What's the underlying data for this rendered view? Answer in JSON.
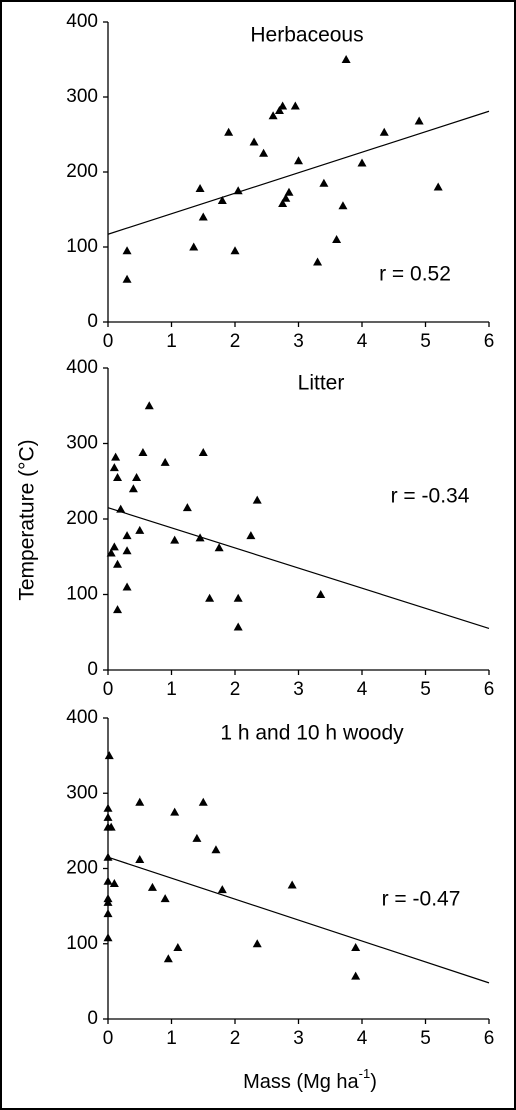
{
  "chart_data": [
    {
      "type": "scatter",
      "title": "Herbaceous",
      "annotation": "r = 0.52",
      "color": "#000000",
      "x": [
        0.3,
        0.3,
        1.35,
        1.45,
        1.5,
        1.8,
        1.9,
        2.0,
        2.05,
        2.3,
        2.45,
        2.6,
        2.7,
        2.75,
        2.75,
        2.8,
        2.85,
        2.95,
        3.0,
        3.3,
        3.4,
        3.6,
        3.7,
        3.75,
        4.0,
        4.35,
        4.9,
        5.2
      ],
      "y": [
        95,
        57,
        100,
        178,
        140,
        162,
        253,
        95,
        175,
        240,
        225,
        275,
        282,
        288,
        158,
        165,
        173,
        288,
        215,
        80,
        185,
        110,
        155,
        350,
        212,
        253,
        268,
        180
      ],
      "trend": {
        "x": [
          0,
          6
        ],
        "y": [
          117,
          281
        ]
      },
      "xlim": [
        0,
        6
      ],
      "ylim": [
        0,
        400
      ],
      "xticks": [
        0,
        1,
        2,
        3,
        4,
        5,
        6
      ],
      "yticks": [
        0,
        100,
        200,
        300,
        400
      ]
    },
    {
      "type": "scatter",
      "title": "Litter",
      "annotation": "r = -0.34",
      "color": "#000000",
      "y_label": "Temperature (°C)",
      "x": [
        0.05,
        0.1,
        0.1,
        0.12,
        0.15,
        0.15,
        0.15,
        0.2,
        0.3,
        0.3,
        0.3,
        0.4,
        0.45,
        0.5,
        0.55,
        0.65,
        0.9,
        1.05,
        1.25,
        1.45,
        1.5,
        1.6,
        1.75,
        2.05,
        2.05,
        2.25,
        2.35,
        3.35
      ],
      "y": [
        155,
        163,
        268,
        282,
        255,
        140,
        80,
        213,
        110,
        178,
        158,
        240,
        255,
        185,
        288,
        350,
        275,
        172,
        215,
        175,
        288,
        95,
        162,
        95,
        57,
        178,
        225,
        100
      ],
      "trend": {
        "x": [
          0,
          6
        ],
        "y": [
          215,
          55
        ]
      },
      "xlim": [
        0,
        6
      ],
      "ylim": [
        0,
        400
      ],
      "xticks": [
        0,
        1,
        2,
        3,
        4,
        5,
        6
      ],
      "yticks": [
        0,
        100,
        200,
        300,
        400
      ]
    },
    {
      "type": "scatter",
      "title": "1 h and 10 h woody",
      "annotation": "r = -0.47",
      "color": "#000000",
      "x_label": "Mass (Mg ha",
      "x_label_sup": "-1",
      "x_label_end": ")",
      "x": [
        0,
        0,
        0,
        0,
        0,
        0,
        0,
        0,
        0.02,
        0.05,
        0,
        0.1,
        0.5,
        0.5,
        0.7,
        0.9,
        0.95,
        1.05,
        1.1,
        1.4,
        1.5,
        1.7,
        1.8,
        2.35,
        2.9,
        3.9,
        3.9
      ],
      "y": [
        108,
        140,
        155,
        160,
        183,
        215,
        280,
        268,
        350,
        255,
        255,
        180,
        288,
        212,
        175,
        160,
        80,
        275,
        95,
        240,
        288,
        225,
        172,
        100,
        178,
        95,
        57
      ],
      "trend": {
        "x": [
          0,
          6
        ],
        "y": [
          215,
          48
        ]
      },
      "xlim": [
        0,
        6
      ],
      "ylim": [
        0,
        400
      ],
      "xticks": [
        0,
        1,
        2,
        3,
        4,
        5,
        6
      ],
      "yticks": [
        0,
        100,
        200,
        300,
        400
      ]
    }
  ]
}
